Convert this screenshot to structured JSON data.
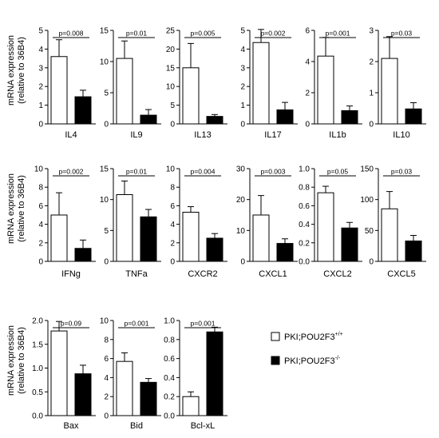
{
  "y_label_line1": "mRNA expression",
  "y_label_line2": "(relative to 36B4)",
  "legend": {
    "wt_label": "PKI;POU2F3",
    "wt_sup": "+/+",
    "ko_label": "PKI;POU2F3",
    "ko_sup": "-/-",
    "wt_fill": "#ffffff",
    "ko_fill": "#000000"
  },
  "chart_data": [
    {
      "type": "bar",
      "gene": "IL4",
      "ylim": [
        0,
        5
      ],
      "ticks": [
        "0",
        "1",
        "2",
        "3",
        "4",
        "5"
      ],
      "series": [
        {
          "values": [
            3.6,
            1.45
          ],
          "errors": [
            0.9,
            0.35
          ]
        }
      ],
      "pvalue": "p=0.008"
    },
    {
      "type": "bar",
      "gene": "IL9",
      "ylim": [
        0,
        15
      ],
      "ticks": [
        "0",
        "5",
        "10",
        "15"
      ],
      "series": [
        {
          "values": [
            10.5,
            1.4
          ],
          "errors": [
            2.8,
            0.9
          ]
        }
      ],
      "pvalue": "p=0.01"
    },
    {
      "type": "bar",
      "gene": "IL13",
      "ylim": [
        0,
        25
      ],
      "ticks": [
        "0",
        "5",
        "10",
        "15",
        "20",
        "25"
      ],
      "series": [
        {
          "values": [
            15,
            2
          ],
          "errors": [
            6.5,
            0.5
          ]
        }
      ],
      "pvalue": "p=0.005"
    },
    {
      "type": "bar",
      "gene": "IL17",
      "ylim": [
        0,
        5
      ],
      "ticks": [
        "0",
        "1",
        "2",
        "3",
        "4",
        "5"
      ],
      "series": [
        {
          "values": [
            4.35,
            0.75
          ],
          "errors": [
            0.7,
            0.4
          ]
        }
      ],
      "pvalue": "p=0.002"
    },
    {
      "type": "bar",
      "gene": "IL1b",
      "ylim": [
        0,
        6
      ],
      "ticks": [
        "0",
        "2",
        "4",
        "6"
      ],
      "series": [
        {
          "values": [
            4.35,
            0.85
          ],
          "errors": [
            1.2,
            0.3
          ]
        }
      ],
      "pvalue": "p=0.001"
    },
    {
      "type": "bar",
      "gene": "IL10",
      "ylim": [
        0,
        3
      ],
      "ticks": [
        "0",
        "1",
        "2",
        "3"
      ],
      "series": [
        {
          "values": [
            2.1,
            0.48
          ],
          "errors": [
            0.7,
            0.2
          ]
        }
      ],
      "pvalue": "p=0.03"
    },
    {
      "type": "bar",
      "gene": "IFNg",
      "ylim": [
        0,
        10
      ],
      "ticks": [
        "0",
        "2",
        "4",
        "6",
        "8",
        "10"
      ],
      "series": [
        {
          "values": [
            5,
            1.4
          ],
          "errors": [
            2.4,
            0.9
          ]
        }
      ],
      "pvalue": "p=0.002"
    },
    {
      "type": "bar",
      "gene": "TNFa",
      "ylim": [
        0,
        15
      ],
      "ticks": [
        "0",
        "5",
        "10",
        "15"
      ],
      "series": [
        {
          "values": [
            10.8,
            7.2
          ],
          "errors": [
            2.2,
            1.2
          ]
        }
      ],
      "pvalue": "p=0.01"
    },
    {
      "type": "bar",
      "gene": "CXCR2",
      "ylim": [
        0,
        10
      ],
      "ticks": [
        "0",
        "2",
        "4",
        "6",
        "8",
        "10"
      ],
      "series": [
        {
          "values": [
            5.3,
            2.5
          ],
          "errors": [
            0.6,
            0.5
          ]
        }
      ],
      "pvalue": "p=0.004"
    },
    {
      "type": "bar",
      "gene": "CXCL1",
      "ylim": [
        0,
        30
      ],
      "ticks": [
        "0",
        "10",
        "20",
        "30"
      ],
      "series": [
        {
          "values": [
            15,
            5.8
          ],
          "errors": [
            6.3,
            1.5
          ]
        }
      ],
      "pvalue": "p=0.003"
    },
    {
      "type": "bar",
      "gene": "CXCL2",
      "ylim": [
        0,
        1.0
      ],
      "ticks": [
        "0.0",
        "0.2",
        "0.4",
        "0.6",
        "0.8",
        "1.0"
      ],
      "series": [
        {
          "values": [
            0.74,
            0.36
          ],
          "errors": [
            0.07,
            0.06
          ]
        }
      ],
      "pvalue": "p=0.05"
    },
    {
      "type": "bar",
      "gene": "CXCL5",
      "ylim": [
        0,
        150
      ],
      "ticks": [
        "0",
        "50",
        "100",
        "150"
      ],
      "series": [
        {
          "values": [
            85,
            33
          ],
          "errors": [
            28,
            9
          ]
        }
      ],
      "pvalue": "p=0.03"
    },
    {
      "type": "bar",
      "gene": "Bax",
      "ylim": [
        0,
        2.0
      ],
      "ticks": [
        "0.0",
        "0.5",
        "1.0",
        "1.5",
        "2.0"
      ],
      "series": [
        {
          "values": [
            1.78,
            0.88
          ],
          "errors": [
            0.2,
            0.18
          ]
        }
      ],
      "pvalue": "p=0.09"
    },
    {
      "type": "bar",
      "gene": "Bid",
      "ylim": [
        0,
        10
      ],
      "ticks": [
        "0",
        "2",
        "4",
        "6",
        "8",
        "10"
      ],
      "series": [
        {
          "values": [
            5.7,
            3.5
          ],
          "errors": [
            0.9,
            0.4
          ]
        }
      ],
      "pvalue": "p=0.001"
    },
    {
      "type": "bar",
      "gene": "Bcl-xL",
      "ylim": [
        0,
        1.0
      ],
      "ticks": [
        "0.0",
        "0.2",
        "0.4",
        "0.6",
        "0.8",
        "1.0"
      ],
      "series": [
        {
          "values": [
            0.2,
            0.88
          ],
          "errors": [
            0.05,
            0.05
          ]
        }
      ],
      "pvalue": "p=0.001"
    }
  ]
}
